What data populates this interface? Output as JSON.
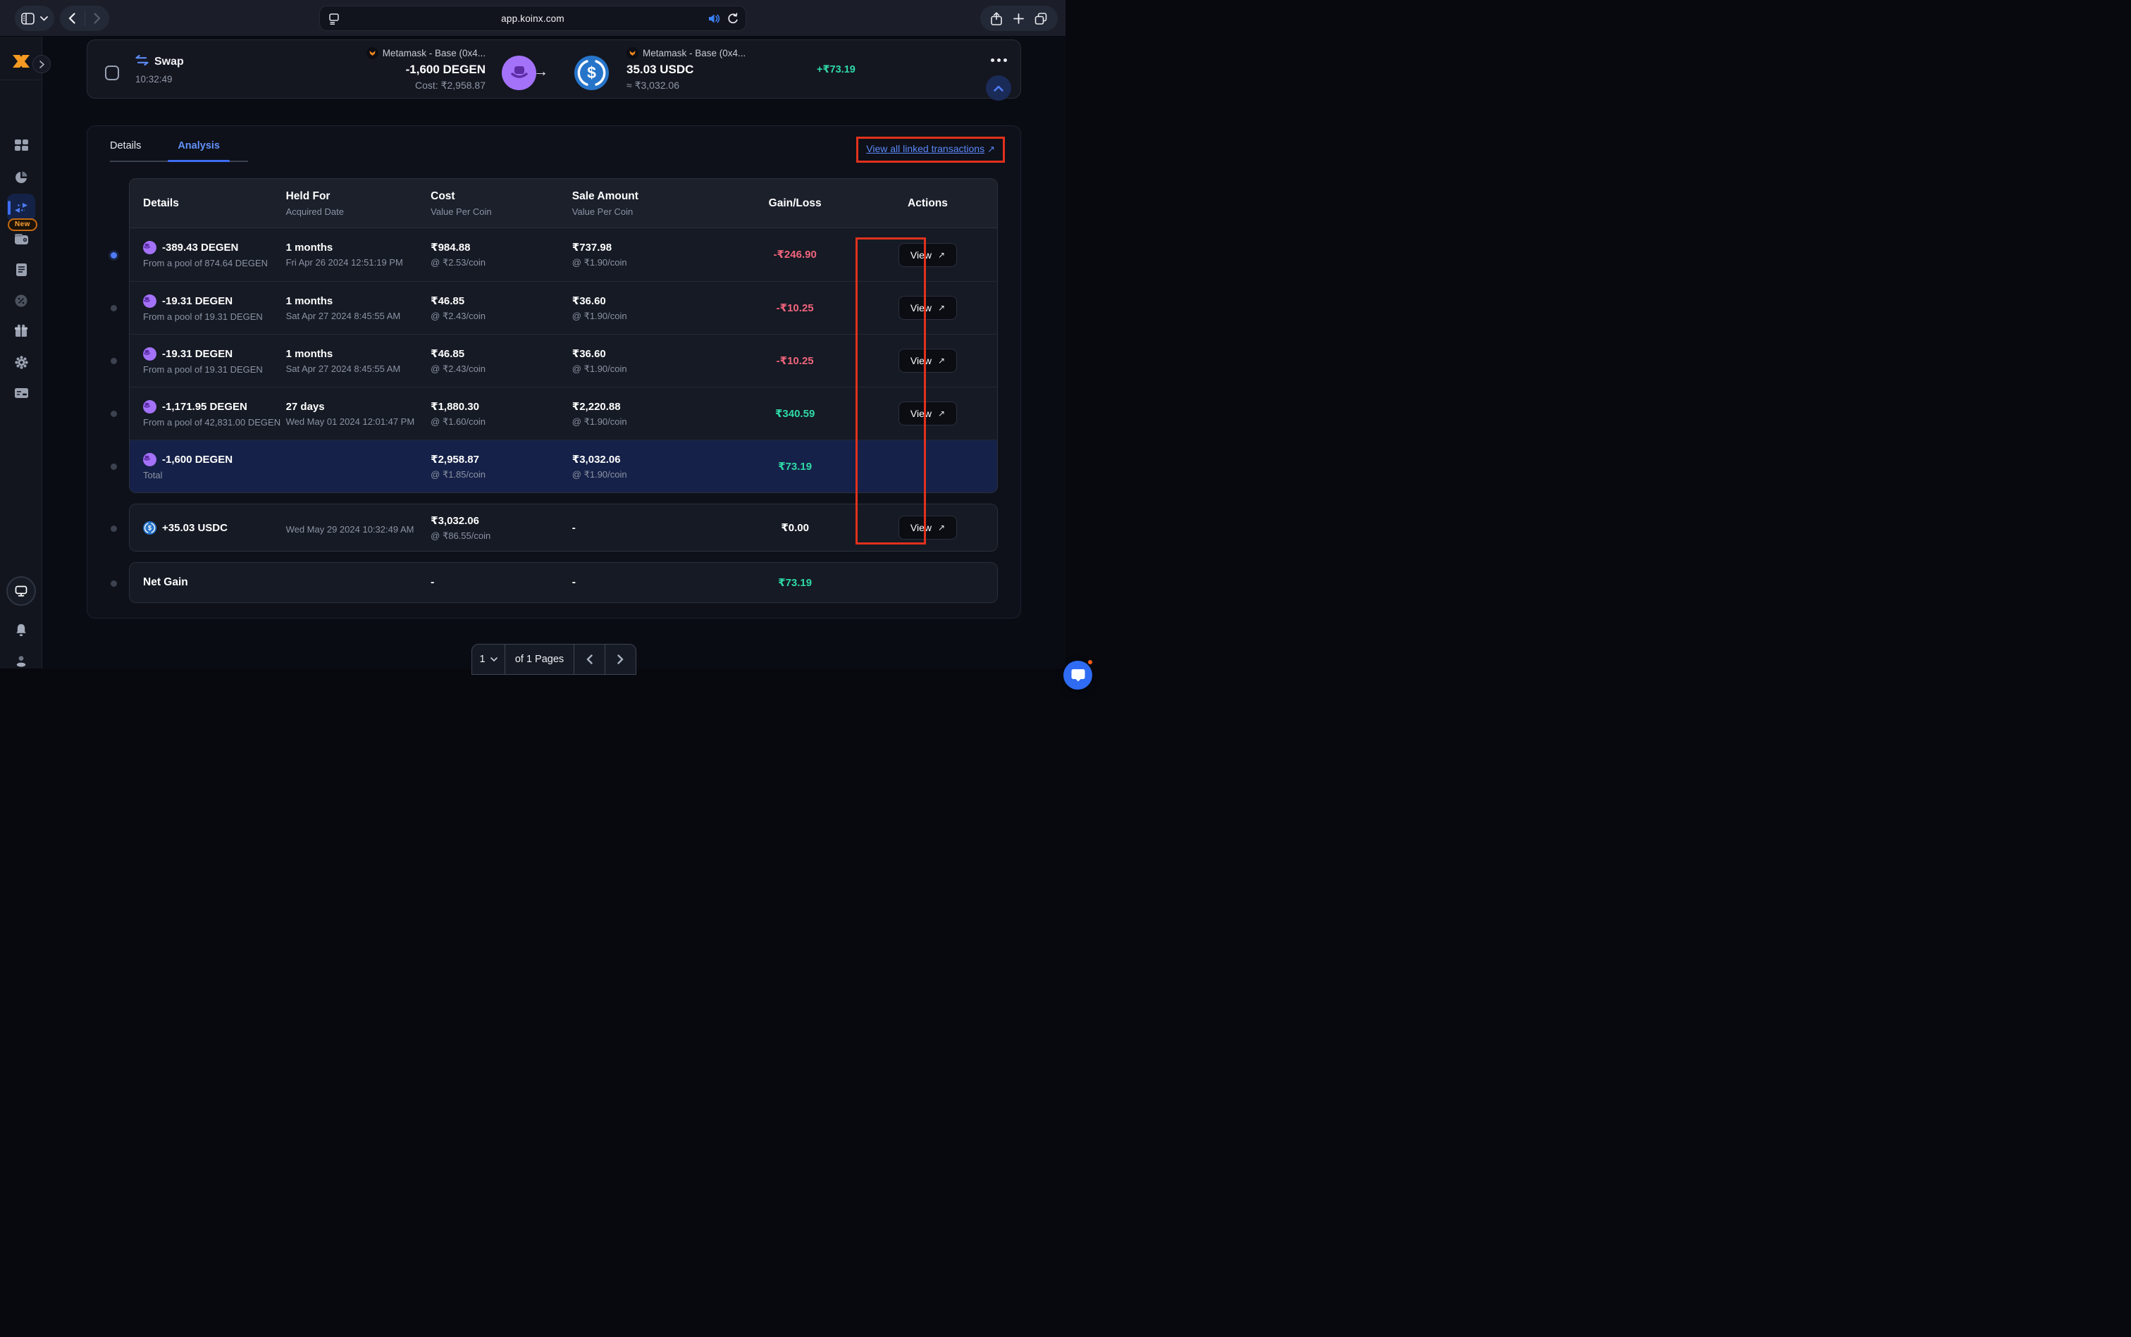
{
  "browser": {
    "url": "app.koinx.com"
  },
  "sidebar": {
    "new_badge": "New"
  },
  "transaction": {
    "type_label": "Swap",
    "time": "10:32:49",
    "from_wallet": "Metamask - Base (0x4...",
    "from_amount": "-1,600 DEGEN",
    "from_cost": "Cost: ₹2,958.87",
    "to_wallet": "Metamask - Base (0x4...",
    "to_amount": "35.03 USDC",
    "to_approx": "≈ ₹3,032.06",
    "gain": "+₹73.19"
  },
  "tabs": {
    "details": "Details",
    "analysis": "Analysis"
  },
  "linked_transactions_link": "View all linked transactions",
  "link_arrow": "↗",
  "table": {
    "headers": [
      {
        "title": "Details",
        "subtitle": ""
      },
      {
        "title": "Held For",
        "subtitle": "Acquired Date"
      },
      {
        "title": "Cost",
        "subtitle": "Value Per Coin"
      },
      {
        "title": "Sale Amount",
        "subtitle": "Value Per Coin"
      },
      {
        "title": "Gain/Loss",
        "subtitle": ""
      },
      {
        "title": "Actions",
        "subtitle": ""
      }
    ],
    "rows": [
      {
        "section": "main",
        "icon": "degen-icon",
        "asset": "-389.43 DEGEN",
        "asset_sub": "From a pool of 874.64 DEGEN",
        "held": "1 months",
        "held_sub": "Fri Apr 26 2024 12:51:19 PM",
        "cost": "₹984.88",
        "cost_sub": "@ ₹2.53/coin",
        "sale": "₹737.98",
        "sale_sub": "@ ₹1.90/coin",
        "gain": "-₹246.90",
        "gain_class": "loss",
        "action": "View"
      },
      {
        "section": "main",
        "icon": "degen-icon",
        "asset": "-19.31 DEGEN",
        "asset_sub": "From a pool of 19.31 DEGEN",
        "held": "1 months",
        "held_sub": "Sat Apr 27 2024 8:45:55 AM",
        "cost": "₹46.85",
        "cost_sub": "@ ₹2.43/coin",
        "sale": "₹36.60",
        "sale_sub": "@ ₹1.90/coin",
        "gain": "-₹10.25",
        "gain_class": "loss",
        "action": "View"
      },
      {
        "section": "main",
        "icon": "degen-icon",
        "asset": "-19.31 DEGEN",
        "asset_sub": "From a pool of 19.31 DEGEN",
        "held": "1 months",
        "held_sub": "Sat Apr 27 2024 8:45:55 AM",
        "cost": "₹46.85",
        "cost_sub": "@ ₹2.43/coin",
        "sale": "₹36.60",
        "sale_sub": "@ ₹1.90/coin",
        "gain": "-₹10.25",
        "gain_class": "loss",
        "action": "View"
      },
      {
        "section": "main",
        "icon": "degen-icon",
        "asset": "-1,171.95 DEGEN",
        "asset_sub": "From a pool of 42,831.00 DEGEN",
        "held": "27 days",
        "held_sub": "Wed May 01 2024 12:01:47 PM",
        "cost": "₹1,880.30",
        "cost_sub": "@ ₹1.60/coin",
        "sale": "₹2,220.88",
        "sale_sub": "@ ₹1.90/coin",
        "gain": "₹340.59",
        "gain_class": "gain",
        "action": "View"
      },
      {
        "section": "main",
        "highlight": true,
        "icon": "degen-icon",
        "asset": "-1,600 DEGEN",
        "asset_sub": "Total",
        "held": "",
        "held_sub": "",
        "cost": "₹2,958.87",
        "cost_sub": "@ ₹1.85/coin",
        "sale": "₹3,032.06",
        "sale_sub": "@ ₹1.90/coin",
        "gain": "₹73.19",
        "gain_class": "gain",
        "action": ""
      },
      {
        "section": "usdc",
        "icon": "usdc-icon",
        "asset": "+35.03 USDC",
        "asset_sub": "",
        "held": "",
        "held_sub": "Wed May 29 2024 10:32:49 AM",
        "cost": "₹3,032.06",
        "cost_sub": "@ ₹86.55/coin",
        "sale": "-",
        "sale_sub": "",
        "gain": "₹0.00",
        "gain_class": "neutral",
        "action": "View"
      },
      {
        "section": "net",
        "icon": "none",
        "bold_label": true,
        "asset": "Net Gain",
        "asset_sub": "",
        "held": "",
        "held_sub": "",
        "cost": "-",
        "cost_sub": "",
        "sale": "-",
        "sale_sub": "",
        "gain": "₹73.19",
        "gain_class": "gain",
        "action": ""
      }
    ]
  },
  "pagination": {
    "page": "1",
    "pages_label": "of 1 Pages"
  },
  "colors": {
    "accent_blue": "#4d7cf6",
    "gain_green": "#2fd9a6",
    "loss_pink": "#f1647c",
    "annotation_red": "#e2311d",
    "degen_purple": "#a472f8",
    "usdc_blue": "#2775ca"
  }
}
